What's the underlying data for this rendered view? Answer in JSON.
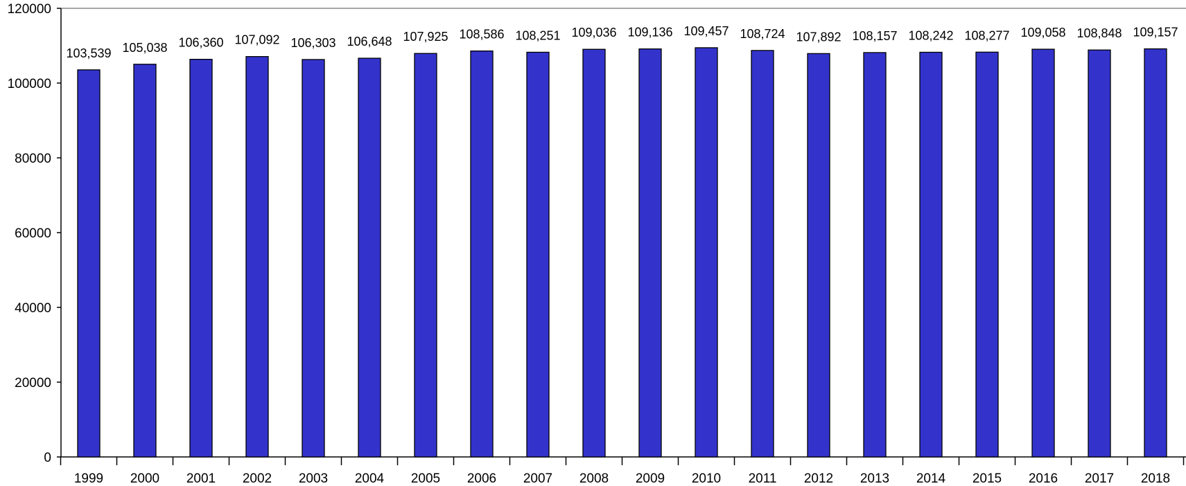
{
  "chart_data": {
    "type": "bar",
    "title": "",
    "xlabel": "",
    "ylabel": "",
    "categories": [
      "1999",
      "2000",
      "2001",
      "2002",
      "2003",
      "2004",
      "2005",
      "2006",
      "2007",
      "2008",
      "2009",
      "2010",
      "2011",
      "2012",
      "2013",
      "2014",
      "2015",
      "2016",
      "2017",
      "2018"
    ],
    "values": [
      103539,
      105038,
      106360,
      107092,
      106303,
      106648,
      107925,
      108586,
      108251,
      109036,
      109136,
      109457,
      108724,
      107892,
      108157,
      108242,
      108277,
      109058,
      108848,
      109157
    ],
    "value_labels": [
      "103,539",
      "105,038",
      "106,360",
      "107,092",
      "106,303",
      "106,648",
      "107,925",
      "108,586",
      "108,251",
      "109,036",
      "109,136",
      "109,457",
      "108,724",
      "107,892",
      "108,157",
      "108,242",
      "108,277",
      "109,058",
      "108,848",
      "109,157"
    ],
    "ylim": [
      0,
      120000
    ],
    "y_ticks": [
      "0",
      "20000",
      "40000",
      "60000",
      "80000",
      "100000",
      "120000"
    ],
    "bar_color": "#3333cc",
    "grid": false,
    "legend": "none"
  }
}
